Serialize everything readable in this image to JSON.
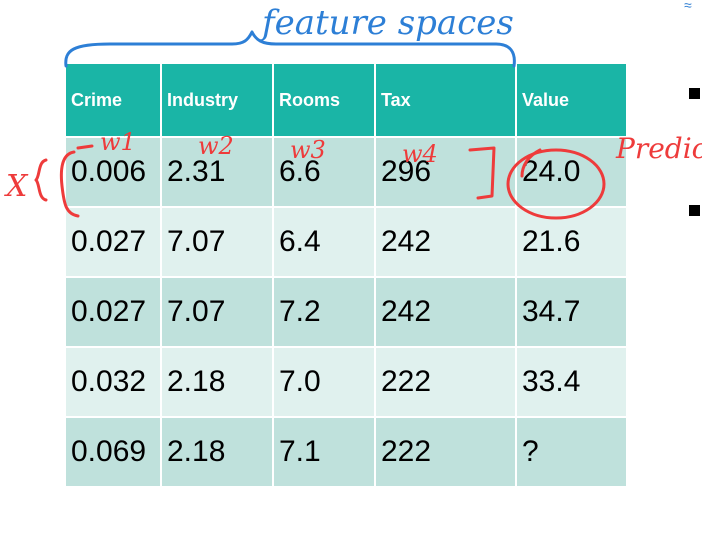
{
  "table": {
    "headers": [
      "Crime",
      "Industry",
      "Rooms",
      "Tax",
      "Value"
    ],
    "rows": [
      [
        "0.006",
        "2.31",
        "6.6",
        "296",
        "24.0"
      ],
      [
        "0.027",
        "7.07",
        "6.4",
        "242",
        "21.6"
      ],
      [
        "0.027",
        "7.07",
        "7.2",
        "242",
        "34.7"
      ],
      [
        "0.032",
        "2.18",
        "7.0",
        "222",
        "33.4"
      ],
      [
        "0.069",
        "2.18",
        "7.1",
        "222",
        "?"
      ]
    ]
  },
  "annotations": {
    "feature_spaces": "feature spaces",
    "w1": "w1",
    "w2": "w2",
    "w3": "w3",
    "w4": "w4",
    "x_label": "X",
    "predict": "Predic",
    "ink_colors": {
      "blue": "#2d7fd6",
      "red": "#ee3b3b"
    }
  },
  "colors": {
    "header_bg": "#1ab5a6",
    "row_odd": "#bfe1dc",
    "row_even": "#e0f1ee"
  }
}
